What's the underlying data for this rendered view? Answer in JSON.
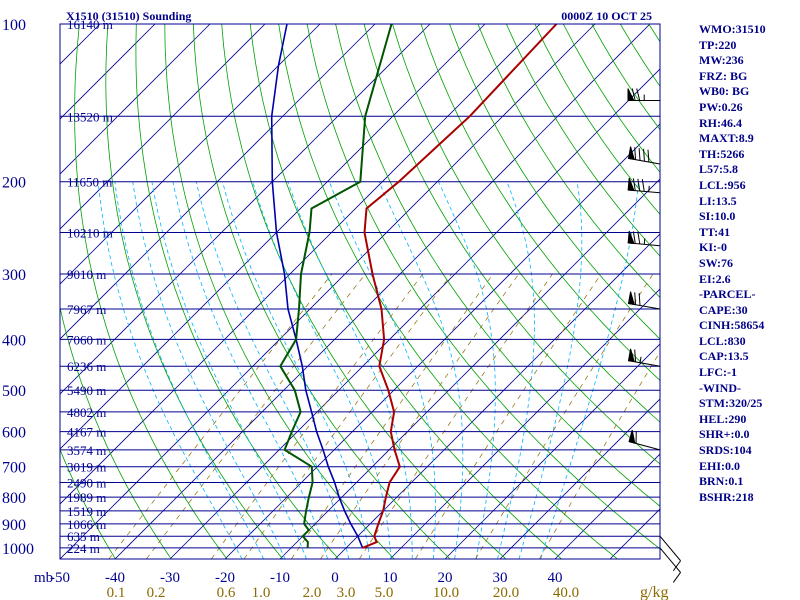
{
  "chart_data": {
    "type": "skew-t",
    "title": "X1510 (31510) Sounding",
    "time_label": "0000Z 10 OCT 25",
    "y_unit_label": "mb",
    "y_scale": "log",
    "pressure_ticks": [
      100,
      200,
      300,
      400,
      500,
      600,
      700,
      800,
      900,
      1000
    ],
    "temperature_ticks": [
      -50,
      -40,
      -30,
      -20,
      -10,
      0,
      10,
      20,
      30,
      40
    ],
    "mixing_ratio_ticks": [
      "0.1",
      "0.2",
      "0.6",
      "1.0",
      "2.0",
      "3.0",
      "5.0",
      "10.0",
      "20.0",
      "40.0"
    ],
    "mixing_ratio_unit": "g/kg",
    "height_labels": [
      {
        "p": 100,
        "label": "16140 m"
      },
      {
        "p": 150,
        "label": "13520 m"
      },
      {
        "p": 200,
        "label": "11650 m"
      },
      {
        "p": 250,
        "label": "10210 m"
      },
      {
        "p": 300,
        "label": "9010 m"
      },
      {
        "p": 350,
        "label": "7967 m"
      },
      {
        "p": 400,
        "label": "7060 m"
      },
      {
        "p": 450,
        "label": "6236 m"
      },
      {
        "p": 500,
        "label": "5490 m"
      },
      {
        "p": 550,
        "label": "4802 m"
      },
      {
        "p": 600,
        "label": "4167 m"
      },
      {
        "p": 650,
        "label": "3574 m"
      },
      {
        "p": 700,
        "label": "3019 m"
      },
      {
        "p": 750,
        "label": "2490 m"
      },
      {
        "p": 800,
        "label": "1989 m"
      },
      {
        "p": 850,
        "label": "1519 m"
      },
      {
        "p": 900,
        "label": "1066 m"
      },
      {
        "p": 950,
        "label": "635 m"
      },
      {
        "p": 1000,
        "label": "224 m"
      }
    ],
    "temperature_profile": [
      {
        "p": 1000,
        "t": 3
      },
      {
        "p": 975,
        "t": 4.5
      },
      {
        "p": 950,
        "t": 3
      },
      {
        "p": 900,
        "t": 1.5
      },
      {
        "p": 850,
        "t": 0
      },
      {
        "p": 800,
        "t": -2
      },
      {
        "p": 750,
        "t": -4
      },
      {
        "p": 700,
        "t": -5
      },
      {
        "p": 650,
        "t": -9
      },
      {
        "p": 600,
        "t": -13
      },
      {
        "p": 550,
        "t": -16
      },
      {
        "p": 500,
        "t": -21
      },
      {
        "p": 450,
        "t": -27
      },
      {
        "p": 400,
        "t": -31
      },
      {
        "p": 350,
        "t": -37
      },
      {
        "p": 300,
        "t": -45
      },
      {
        "p": 250,
        "t": -54
      },
      {
        "p": 225,
        "t": -58
      },
      {
        "p": 200,
        "t": -57
      },
      {
        "p": 150,
        "t": -56
      },
      {
        "p": 100,
        "t": -57
      }
    ],
    "dewpoint_profile": [
      {
        "p": 1000,
        "t": -7
      },
      {
        "p": 975,
        "t": -8
      },
      {
        "p": 950,
        "t": -10
      },
      {
        "p": 925,
        "t": -10
      },
      {
        "p": 900,
        "t": -12
      },
      {
        "p": 850,
        "t": -14
      },
      {
        "p": 800,
        "t": -16
      },
      {
        "p": 750,
        "t": -18
      },
      {
        "p": 700,
        "t": -21
      },
      {
        "p": 650,
        "t": -29
      },
      {
        "p": 600,
        "t": -31
      },
      {
        "p": 550,
        "t": -33
      },
      {
        "p": 500,
        "t": -38
      },
      {
        "p": 450,
        "t": -45
      },
      {
        "p": 400,
        "t": -47
      },
      {
        "p": 350,
        "t": -52
      },
      {
        "p": 300,
        "t": -58
      },
      {
        "p": 250,
        "t": -64
      },
      {
        "p": 225,
        "t": -68
      },
      {
        "p": 200,
        "t": -64
      },
      {
        "p": 150,
        "t": -75
      },
      {
        "p": 100,
        "t": -87
      }
    ],
    "parcel_profile": [
      {
        "p": 1000,
        "t": 3
      },
      {
        "p": 950,
        "t": 0
      },
      {
        "p": 900,
        "t": -3.5
      },
      {
        "p": 850,
        "t": -7
      },
      {
        "p": 800,
        "t": -10.5
      },
      {
        "p": 750,
        "t": -14
      },
      {
        "p": 700,
        "t": -18
      },
      {
        "p": 650,
        "t": -22
      },
      {
        "p": 600,
        "t": -26.5
      },
      {
        "p": 550,
        "t": -31
      },
      {
        "p": 500,
        "t": -36
      },
      {
        "p": 450,
        "t": -41
      },
      {
        "p": 400,
        "t": -47
      },
      {
        "p": 350,
        "t": -54
      },
      {
        "p": 300,
        "t": -61
      },
      {
        "p": 250,
        "t": -70
      },
      {
        "p": 200,
        "t": -80
      },
      {
        "p": 150,
        "t": -92
      },
      {
        "p": 120,
        "t": -100
      },
      {
        "p": 100,
        "t": -106
      }
    ],
    "wind_barbs": [
      {
        "p": 1000,
        "dir": 140,
        "spd": 10
      },
      {
        "p": 950,
        "dir": 140,
        "spd": 10
      },
      {
        "p": 650,
        "dir": 285,
        "spd": 60
      },
      {
        "p": 450,
        "dir": 280,
        "spd": 65
      },
      {
        "p": 350,
        "dir": 280,
        "spd": 70
      },
      {
        "p": 265,
        "dir": 275,
        "spd": 75
      },
      {
        "p": 210,
        "dir": 275,
        "spd": 85
      },
      {
        "p": 185,
        "dir": 280,
        "spd": 90
      },
      {
        "p": 140,
        "dir": 270,
        "spd": 75
      }
    ],
    "grid_colors": {
      "isobar": "#000090",
      "isotherm": "#000090",
      "dry_adiabat": "#00a000",
      "moist_adiabat": "#00b4ff",
      "mixing_ratio": "#8a6a00",
      "temperature": "#aa0000",
      "dewpoint": "#005500",
      "parcel": "#0000aa",
      "wind": "#000000"
    }
  },
  "sidebar": {
    "items": [
      "WMO:31510",
      "TP:220",
      "MW:236",
      "FRZ: BG",
      "WB0: BG",
      "PW:0.26",
      "RH:46.4",
      "MAXT:8.9",
      "TH:5266",
      "L57:5.8",
      "LCL:956",
      "LI:13.5",
      "SI:10.0",
      "TT:41",
      "KI:-0",
      "SW:76",
      "EI:2.6",
      "-PARCEL-",
      "CAPE:30",
      "CINH:58654",
      "LCL:830",
      "CAP:13.5",
      "LFC:-1",
      "-WIND-",
      "STM:320/25",
      "HEL:290",
      "SHR+:0.0",
      "SRDS:104",
      "EHI:0.0",
      "BRN:0.1",
      "BSHR:218"
    ]
  }
}
